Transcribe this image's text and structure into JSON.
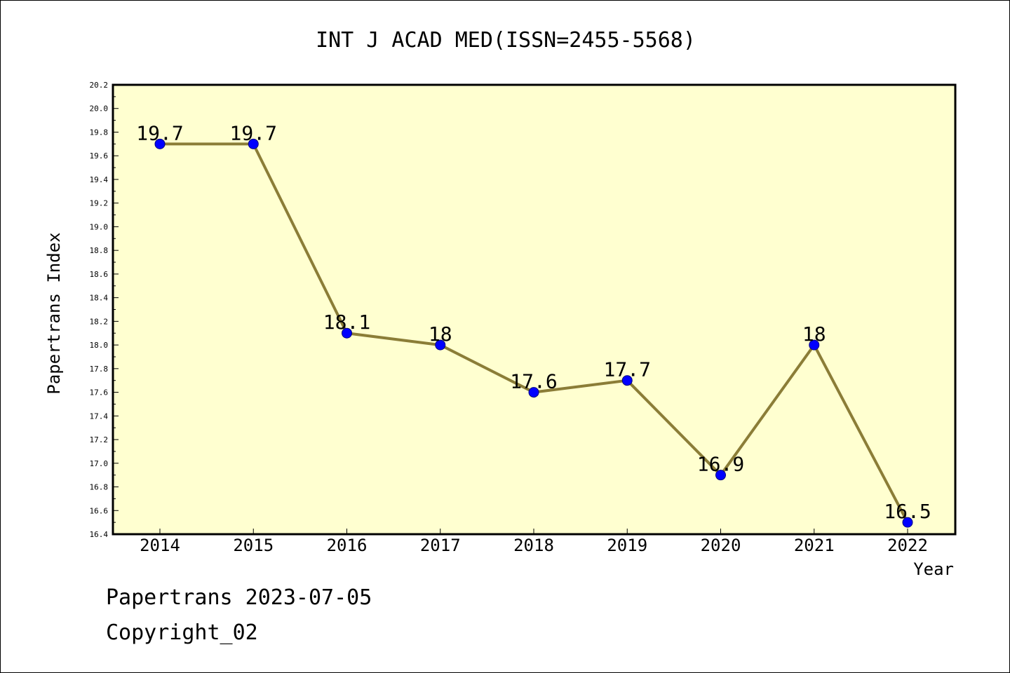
{
  "chart_data": {
    "type": "line",
    "title": "INT J ACAD MED(ISSN=2455-5568)",
    "xlabel": "Year",
    "ylabel": "Papertrans Index",
    "categories": [
      "2014",
      "2015",
      "2016",
      "2017",
      "2018",
      "2019",
      "2020",
      "2021",
      "2022"
    ],
    "series": [
      {
        "values": [
          19.7,
          19.7,
          18.1,
          18.0,
          17.6,
          17.7,
          16.9,
          18.0,
          16.5
        ],
        "data_labels": [
          "19.7",
          "19.7",
          "18.1",
          "18",
          "17.6",
          "17.7",
          "16.9",
          "18",
          "16.5"
        ]
      }
    ],
    "ylim": [
      16.4,
      20.2
    ],
    "y_ticks": [
      "16.4",
      "16.6",
      "16.8",
      "17.0",
      "17.2",
      "17.4",
      "17.6",
      "17.8",
      "18.0",
      "18.2",
      "18.4",
      "18.6",
      "18.8",
      "19.0",
      "19.2",
      "19.4",
      "19.6",
      "19.8",
      "20.0",
      "20.2"
    ],
    "grid": false,
    "colors": {
      "plot_background": "#ffffd0",
      "line": "#8b7d37",
      "marker": "#0000ff",
      "marker_edge": "#000080"
    }
  },
  "footer": {
    "line1": "Papertrans 2023-07-05",
    "line2": "Copyright_02"
  }
}
